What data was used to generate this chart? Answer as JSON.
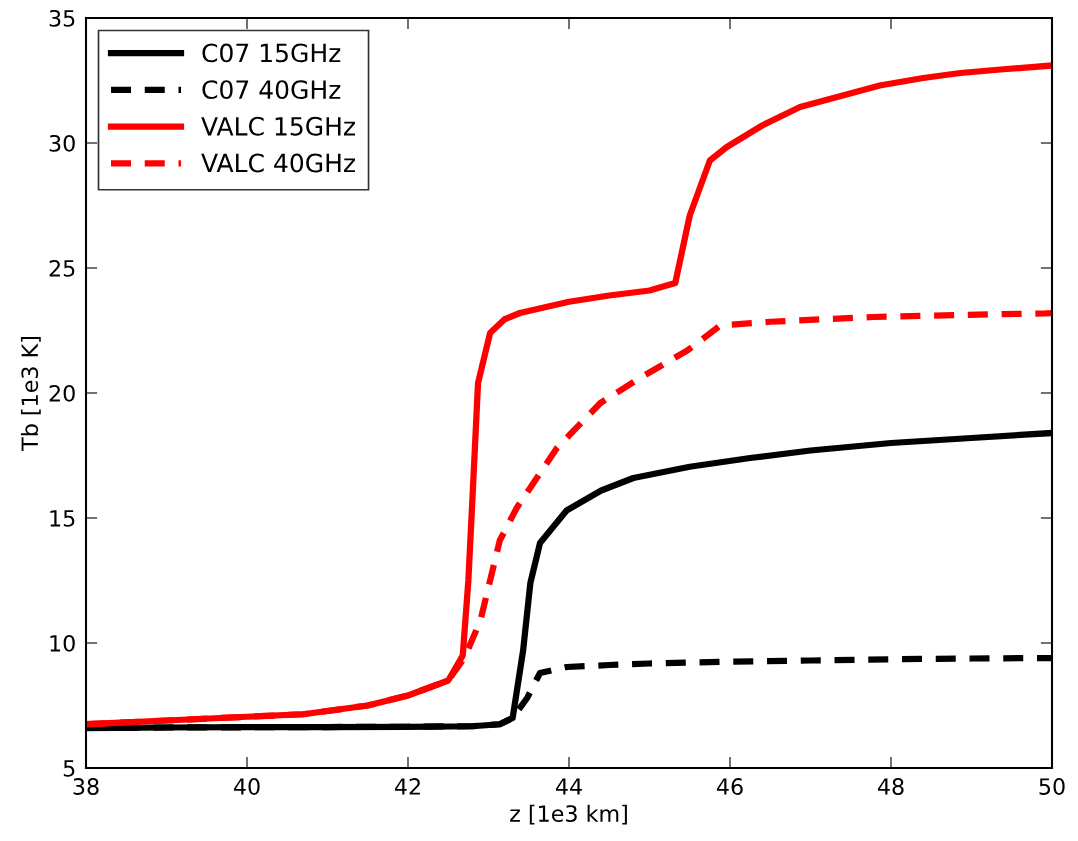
{
  "chart_data": {
    "type": "line",
    "xlabel": "z [1e3 km]",
    "ylabel": "Tb [1e3 K]",
    "xlim": [
      38,
      50
    ],
    "ylim": [
      5,
      35
    ],
    "xticks": [
      38,
      40,
      42,
      44,
      46,
      48,
      50
    ],
    "yticks": [
      5,
      10,
      15,
      20,
      25,
      30,
      35
    ],
    "grid": false,
    "legend": "top left",
    "marker": "none",
    "series": [
      {
        "name": "C07 15GHz",
        "color": "#000000",
        "line_style": "solid",
        "x": [
          38,
          39,
          40,
          41,
          42,
          42.8,
          43.14,
          43.3,
          43.43,
          43.52,
          43.64,
          43.97,
          44.4,
          44.8,
          45.5,
          46.25,
          47,
          48,
          49,
          50
        ],
        "values": [
          6.6,
          6.62,
          6.63,
          6.64,
          6.65,
          6.67,
          6.75,
          7.0,
          9.7,
          12.4,
          14.0,
          15.3,
          16.1,
          16.6,
          17.05,
          17.4,
          17.7,
          18.0,
          18.2,
          18.4
        ]
      },
      {
        "name": "C07 40GHz",
        "color": "#000000",
        "line_style": "dashed",
        "x": [
          38,
          39,
          40,
          41,
          42,
          42.8,
          43.14,
          43.3,
          43.48,
          43.64,
          43.97,
          44.5,
          45,
          46,
          47,
          48,
          49,
          50
        ],
        "values": [
          6.6,
          6.62,
          6.63,
          6.64,
          6.65,
          6.67,
          6.75,
          7.0,
          7.8,
          8.8,
          9.04,
          9.12,
          9.18,
          9.25,
          9.3,
          9.35,
          9.38,
          9.4
        ]
      },
      {
        "name": "VALC 15GHz",
        "color": "#ff0000",
        "line_style": "solid",
        "x": [
          38,
          39,
          40,
          40.7,
          41.5,
          42,
          42.5,
          42.68,
          42.75,
          42.81,
          42.87,
          43.02,
          43.2,
          43.39,
          44,
          44.5,
          45,
          45.32,
          45.5,
          45.75,
          45.96,
          46.4,
          46.87,
          47.4,
          47.86,
          48.4,
          48.86,
          49.4,
          50
        ],
        "values": [
          6.75,
          6.9,
          7.05,
          7.15,
          7.5,
          7.9,
          8.5,
          9.5,
          12.5,
          16.4,
          20.4,
          22.4,
          22.95,
          23.2,
          23.65,
          23.9,
          24.1,
          24.4,
          27.1,
          29.3,
          29.84,
          30.7,
          31.44,
          31.9,
          32.3,
          32.6,
          32.8,
          32.95,
          33.1
        ]
      },
      {
        "name": "VALC 40GHz",
        "color": "#ff0000",
        "line_style": "dashed",
        "x": [
          38,
          39,
          40,
          40.7,
          41.5,
          42,
          42.5,
          42.7,
          42.9,
          43.14,
          43.35,
          43.85,
          44.39,
          44.88,
          45.47,
          45.88,
          46.5,
          47.78,
          48.8,
          49.9,
          50
        ],
        "values": [
          6.75,
          6.9,
          7.05,
          7.15,
          7.5,
          7.9,
          8.5,
          9.4,
          10.9,
          14.1,
          15.4,
          17.8,
          19.6,
          20.6,
          21.7,
          22.7,
          22.85,
          23.04,
          23.12,
          23.18,
          23.2
        ]
      }
    ]
  }
}
